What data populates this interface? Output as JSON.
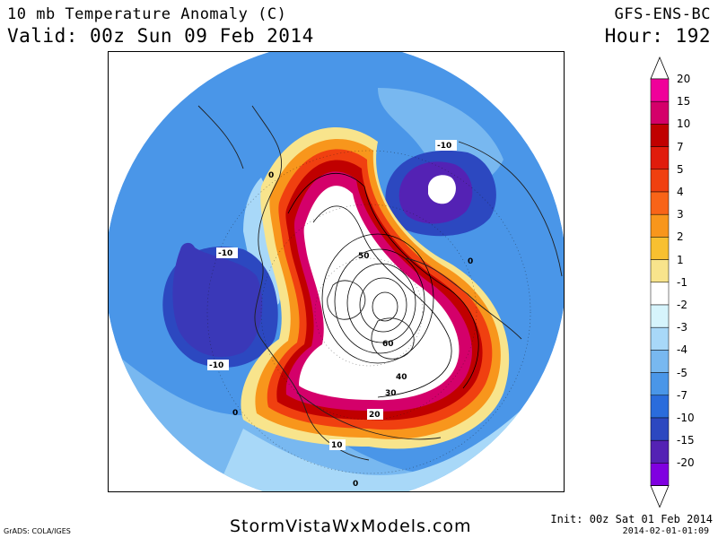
{
  "header": {
    "title": "10 mb Temperature Anomaly (C)",
    "valid": "Valid: 00z Sun 09 Feb 2014",
    "model": "GFS-ENS-BC",
    "hour": "Hour: 192"
  },
  "map": {
    "projection": "polar-stereographic-north",
    "contour_labels": [
      "-10",
      "0",
      "-10",
      "-10",
      "0",
      "50",
      "60",
      "40",
      "30",
      "20",
      "10",
      "0",
      "0"
    ]
  },
  "colorbar": {
    "levels": [
      {
        "label": "20",
        "color": "#f0009a"
      },
      {
        "label": "15",
        "color": "#d4006a"
      },
      {
        "label": "10",
        "color": "#c00000"
      },
      {
        "label": "7",
        "color": "#e01c0c"
      },
      {
        "label": "5",
        "color": "#f04010"
      },
      {
        "label": "4",
        "color": "#f86418"
      },
      {
        "label": "3",
        "color": "#f8961c"
      },
      {
        "label": "2",
        "color": "#f8c030"
      },
      {
        "label": "1",
        "color": "#f8e48c"
      },
      {
        "label": "-1",
        "color": "#ffffff"
      },
      {
        "label": "-2",
        "color": "#d6f4fc"
      },
      {
        "label": "-3",
        "color": "#a8d8f8"
      },
      {
        "label": "-4",
        "color": "#78b8f0"
      },
      {
        "label": "-5",
        "color": "#4a96e8"
      },
      {
        "label": "-7",
        "color": "#2a6cdc"
      },
      {
        "label": "-10",
        "color": "#2c48c0"
      },
      {
        "label": "-15",
        "color": "#5422b4"
      },
      {
        "label": "-20",
        "color": "#8000e0"
      }
    ]
  },
  "footer": {
    "grads": "GrADS: COLA/IGES",
    "site": "StormVistaWxModels.com",
    "init": "Init: 00z Sat 01 Feb 2014",
    "timestamp": "2014-02-01-01:09"
  }
}
